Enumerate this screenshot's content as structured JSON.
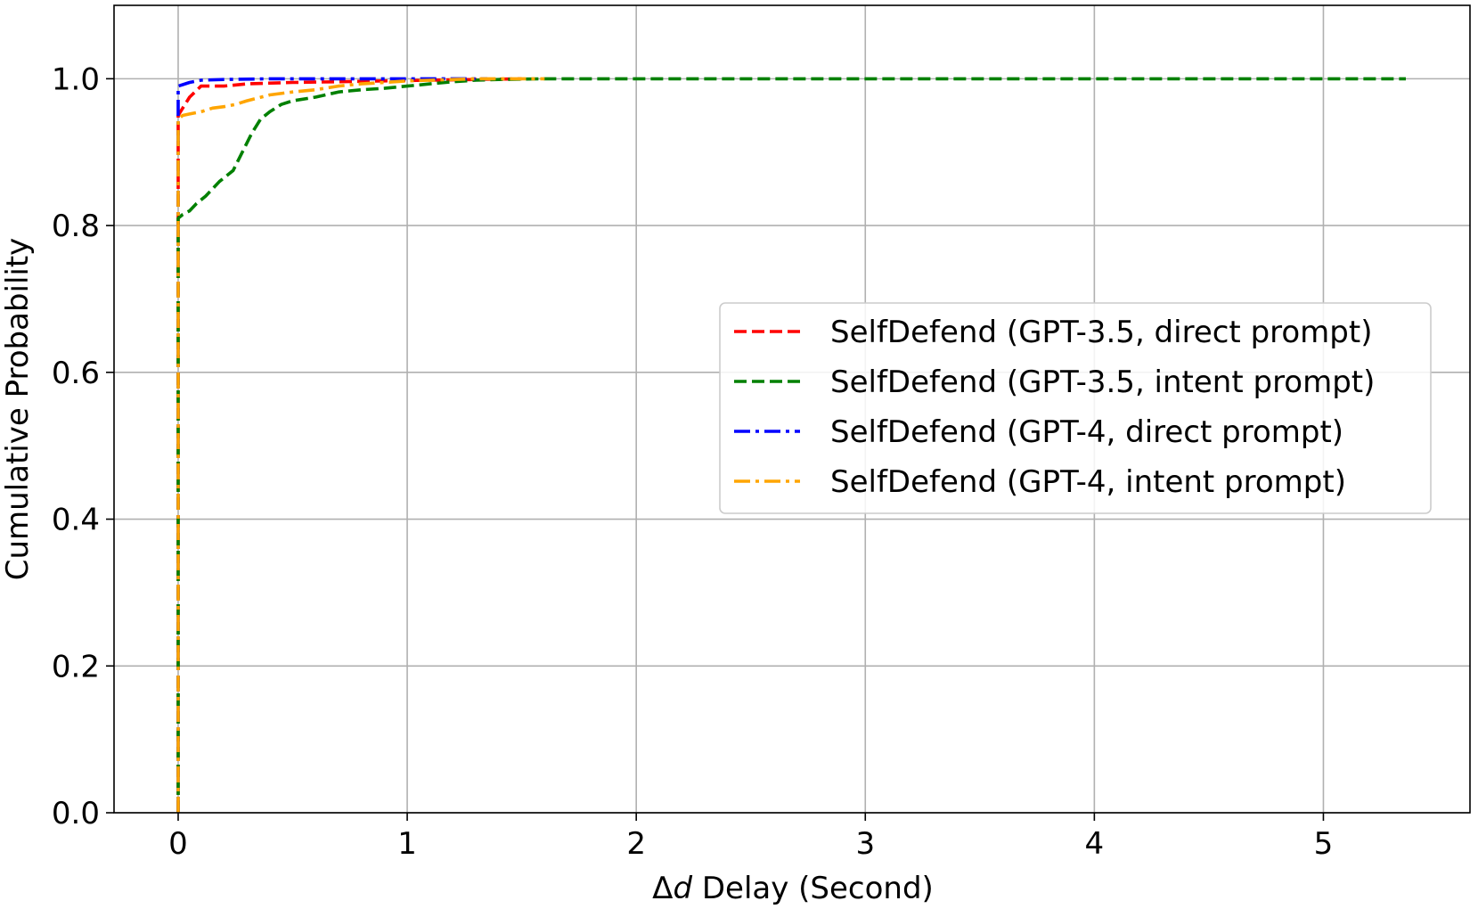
{
  "chart_data": {
    "type": "line",
    "xlabel_prefix": "Δ",
    "xlabel_var": "d",
    "xlabel_suffix": " Delay (Second)",
    "ylabel": "Cumulative Probability",
    "xlim": [
      -0.28,
      5.64
    ],
    "ylim": [
      0.0,
      1.1
    ],
    "xticks": [
      0,
      1,
      2,
      3,
      4,
      5
    ],
    "yticks": [
      0.0,
      0.2,
      0.4,
      0.6,
      0.8,
      1.0
    ],
    "xtick_labels": [
      "0",
      "1",
      "2",
      "3",
      "4",
      "5"
    ],
    "ytick_labels": [
      "0.0",
      "0.2",
      "0.4",
      "0.6",
      "0.8",
      "1.0"
    ],
    "grid": true,
    "legend_position": "center-right",
    "series": [
      {
        "name": "SelfDefend (GPT-3.5, direct prompt)",
        "color": "#ff0000",
        "dash": "dashed",
        "x": [
          0,
          0,
          0,
          0.02,
          0.05,
          0.1,
          0.2,
          0.3,
          0.5,
          0.7,
          0.9,
          1.1,
          1.3,
          1.5
        ],
        "y": [
          0,
          0.88,
          0.95,
          0.96,
          0.975,
          0.99,
          0.99,
          0.993,
          0.995,
          0.996,
          0.997,
          0.998,
          0.999,
          1.0
        ]
      },
      {
        "name": "SelfDefend (GPT-3.5, intent prompt)",
        "color": "#008000",
        "dash": "dashed",
        "x": [
          0,
          0,
          0.02,
          0.05,
          0.08,
          0.12,
          0.18,
          0.24,
          0.28,
          0.32,
          0.36,
          0.4,
          0.45,
          0.5,
          0.6,
          0.7,
          0.8,
          0.9,
          1.0,
          1.1,
          1.2,
          1.3,
          1.4,
          1.6,
          2.0,
          3.0,
          4.0,
          5.0,
          5.36
        ],
        "y": [
          0,
          0.81,
          0.815,
          0.82,
          0.83,
          0.84,
          0.86,
          0.875,
          0.9,
          0.925,
          0.945,
          0.955,
          0.965,
          0.97,
          0.975,
          0.982,
          0.985,
          0.987,
          0.99,
          0.993,
          0.996,
          0.998,
          0.999,
          1.0,
          1.0,
          1.0,
          1.0,
          1.0,
          1.0
        ]
      },
      {
        "name": "SelfDefend (GPT-4, direct prompt)",
        "color": "#0000ff",
        "dash": "dashdot",
        "x": [
          0,
          0,
          0,
          0.02,
          0.05,
          0.1,
          0.2,
          0.4,
          0.6,
          0.8,
          1.0,
          1.2,
          1.35
        ],
        "y": [
          0,
          0.95,
          0.99,
          0.992,
          0.995,
          0.998,
          0.999,
          1.0,
          1.0,
          1.0,
          1.0,
          1.0,
          1.0
        ]
      },
      {
        "name": "SelfDefend (GPT-4, intent prompt)",
        "color": "#ffa500",
        "dash": "dashdot",
        "x": [
          0,
          0,
          0.02,
          0.05,
          0.1,
          0.15,
          0.2,
          0.25,
          0.3,
          0.4,
          0.5,
          0.6,
          0.7,
          0.8,
          0.9,
          1.0,
          1.1,
          1.2,
          1.3,
          1.4,
          1.6
        ],
        "y": [
          0,
          0.945,
          0.95,
          0.952,
          0.955,
          0.96,
          0.962,
          0.965,
          0.97,
          0.978,
          0.982,
          0.985,
          0.99,
          0.993,
          0.995,
          0.997,
          0.998,
          0.999,
          1.0,
          1.0,
          1.0
        ]
      }
    ]
  }
}
